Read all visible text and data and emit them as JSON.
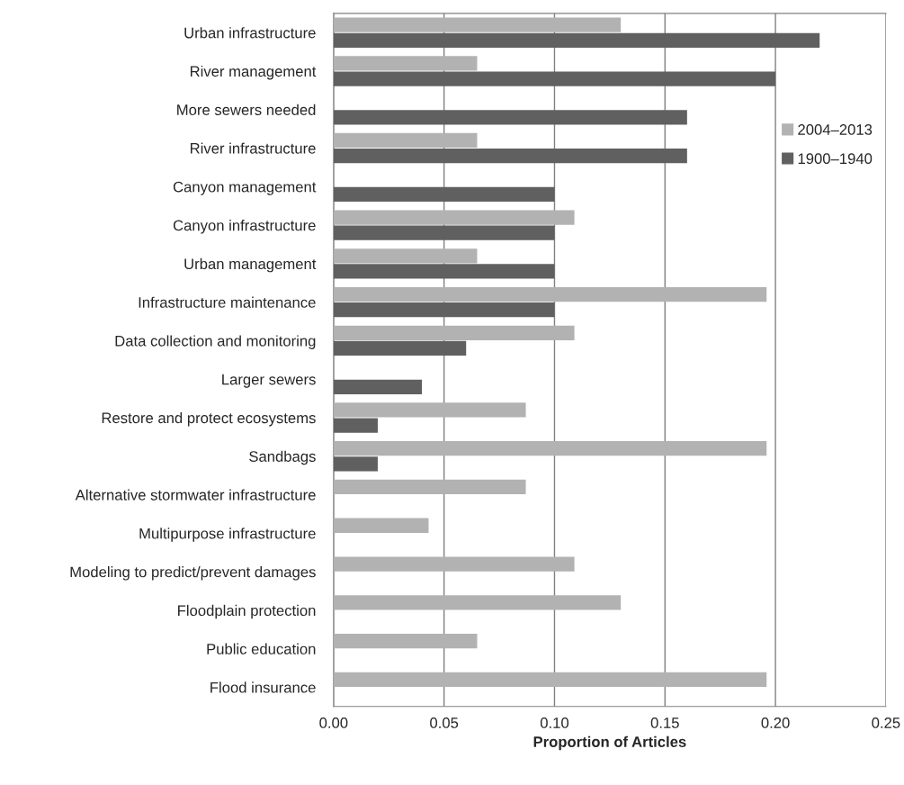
{
  "chart_data": {
    "type": "bar",
    "orientation": "horizontal",
    "xlabel": "Proportion of Articles",
    "categories": [
      "Urban infrastructure",
      "River management",
      "More sewers needed",
      "River infrastructure",
      "Canyon management",
      "Canyon infrastructure",
      "Urban management",
      "Infrastructure maintenance",
      "Data collection and monitoring",
      "Larger sewers",
      "Restore and protect ecosystems",
      "Sandbags",
      "Alternative stormwater infrastructure",
      "Multipurpose infrastructure",
      "Modeling to predict/prevent damages",
      "Floodplain protection",
      "Public education",
      "Flood insurance"
    ],
    "series": [
      {
        "name": "2004–2013",
        "color": "#b2b2b2",
        "values": [
          0.13,
          0.065,
          null,
          0.065,
          null,
          0.109,
          0.065,
          0.196,
          0.109,
          null,
          0.087,
          0.196,
          0.087,
          0.043,
          0.109,
          0.13,
          0.065,
          0.196
        ]
      },
      {
        "name": "1900–1940",
        "color": "#606060",
        "values": [
          0.22,
          0.2,
          0.16,
          0.16,
          0.1,
          0.1,
          0.1,
          0.1,
          0.06,
          0.04,
          0.02,
          0.02,
          null,
          null,
          null,
          null,
          null,
          null
        ]
      }
    ],
    "xlim": [
      0,
      0.25
    ],
    "xticks": [
      {
        "value": 0,
        "label": "0.00"
      },
      {
        "value": 0.05,
        "label": "0.05"
      },
      {
        "value": 0.1,
        "label": "0.10"
      },
      {
        "value": 0.15,
        "label": "0.15"
      },
      {
        "value": 0.2,
        "label": "0.20"
      },
      {
        "value": 0.25,
        "label": "0.25"
      }
    ],
    "grid": "x",
    "legend": "top right"
  }
}
